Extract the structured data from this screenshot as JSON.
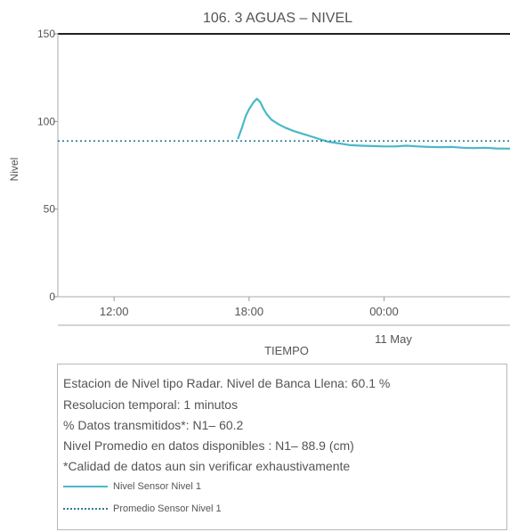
{
  "chart_data": {
    "type": "line",
    "title": "106. 3 AGUAS – NIVEL",
    "xlabel": "TIEMPO",
    "ylabel": "Nivel",
    "ylim": [
      0,
      150
    ],
    "yticks": [
      0,
      50,
      100,
      150
    ],
    "xticks": [
      {
        "label": "12:00",
        "hour": 12
      },
      {
        "label": "18:00",
        "hour": 18
      },
      {
        "label": "00:00",
        "hour": 24
      }
    ],
    "date_label": "11 May",
    "xlim_hours": [
      9.5,
      29.6
    ],
    "grid": false,
    "series": [
      {
        "name": "Nivel Sensor Nivel 1",
        "color": "#4ab8c8",
        "x": [
          17.5,
          17.7,
          17.85,
          18.0,
          18.2,
          18.35,
          18.5,
          18.65,
          18.8,
          19.0,
          19.3,
          19.6,
          20.0,
          20.5,
          21.0,
          21.5,
          22.0,
          22.5,
          23.0,
          23.5,
          24.0,
          24.5,
          25.0,
          25.5,
          26.0,
          26.5,
          27.0,
          27.5,
          28.0,
          28.5,
          29.0,
          29.6
        ],
        "y": [
          90,
          97,
          103,
          107,
          111,
          113,
          111,
          107,
          104,
          101,
          98.5,
          96.5,
          94.5,
          92.5,
          90.5,
          88.5,
          87.5,
          86.5,
          86.2,
          86,
          85.8,
          85.8,
          86.2,
          85.8,
          85.5,
          85.3,
          85.5,
          85,
          84.8,
          85,
          84.6,
          84.5
        ]
      },
      {
        "name": "Promedio Sensor Nivel 1",
        "color": "#2c7e96",
        "dashed": true,
        "x": [
          9.5,
          29.6
        ],
        "y": [
          88.9,
          88.9
        ]
      }
    ]
  },
  "info": {
    "lines": [
      "Estacion de Nivel tipo Radar. Nivel de Banca Llena: 60.1 %",
      "Resolucion temporal: 1 minutos",
      "% Datos transmitidos*: N1– 60.2",
      "Nivel Promedio en datos disponibles : N1– 88.9 (cm)",
      "*Calidad de datos aun sin verificar exhaustivamente"
    ],
    "legend": [
      {
        "label": "Nivel Sensor Nivel 1",
        "style": "solid"
      },
      {
        "label": "Promedio Sensor Nivel 1",
        "style": "dotted"
      }
    ]
  }
}
